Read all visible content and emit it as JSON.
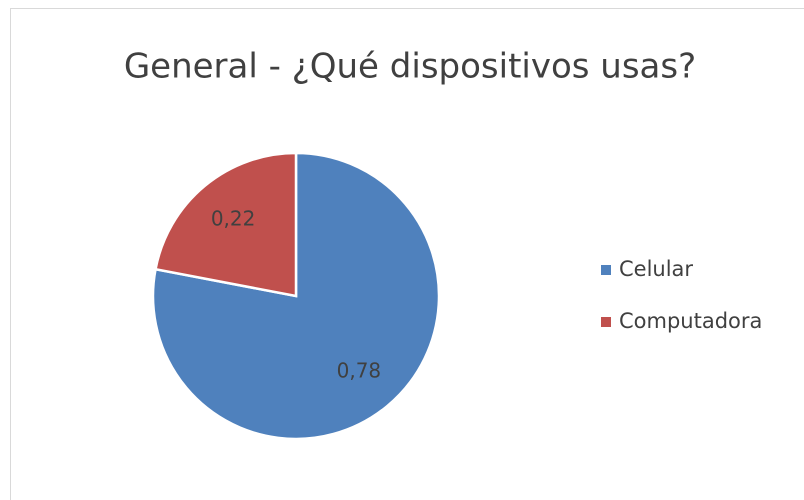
{
  "chart_data": {
    "type": "pie",
    "title": "General - ¿Qué dispositivos usas?",
    "categories": [
      "Celular",
      "Computadora"
    ],
    "values": [
      0.78,
      0.22
    ],
    "value_labels": [
      "0,78",
      "0,22"
    ],
    "colors": [
      "#4f81bd",
      "#c0504d"
    ],
    "legend": "right"
  }
}
